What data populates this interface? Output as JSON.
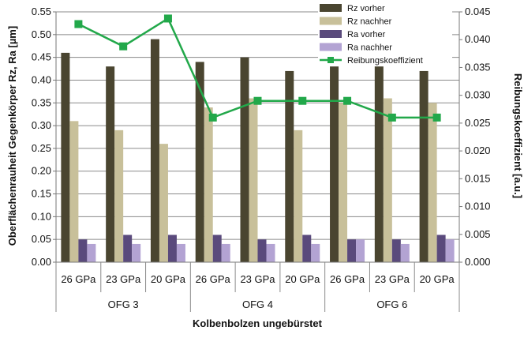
{
  "chart_data": {
    "type": "bar",
    "title": "",
    "xlabel": "Kolbenbolzen ungebürstet",
    "ylabel": "Oberflächenrauheit Gegenkörper Rz, Ra [µm]",
    "y2label": "Reibungskoeffizient [a.u.]",
    "ylim": [
      0,
      0.55
    ],
    "y2lim": [
      0,
      0.045
    ],
    "yticks": [
      "0.00",
      "0.05",
      "0.10",
      "0.15",
      "0.20",
      "0.25",
      "0.30",
      "0.35",
      "0.40",
      "0.45",
      "0.50",
      "0.55"
    ],
    "y2ticks": [
      "0.000",
      "0.005",
      "0.010",
      "0.015",
      "0.020",
      "0.025",
      "0.030",
      "0.035",
      "0.040",
      "0.045"
    ],
    "grid": "horizontal",
    "legend_position": "top-right",
    "categories": [
      "26 GPa",
      "23 GPa",
      "20 GPa",
      "26 GPa",
      "23 GPa",
      "20 GPa",
      "26 GPa",
      "23 GPa",
      "20 GPa"
    ],
    "groups": [
      {
        "label": "OFG 3",
        "count": 3
      },
      {
        "label": "OFG 4",
        "count": 3
      },
      {
        "label": "OFG 6",
        "count": 3
      }
    ],
    "series": [
      {
        "name": "Rz vorher",
        "type": "bar",
        "axis": "left",
        "color": "#4a4530",
        "values": [
          0.46,
          0.43,
          0.49,
          0.44,
          0.45,
          0.42,
          0.43,
          0.43,
          0.42
        ]
      },
      {
        "name": "Rz nachher",
        "type": "bar",
        "axis": "left",
        "color": "#c8c09a",
        "values": [
          0.31,
          0.29,
          0.26,
          0.34,
          0.36,
          0.29,
          0.35,
          0.36,
          0.35
        ]
      },
      {
        "name": "Ra vorher",
        "type": "bar",
        "axis": "left",
        "color": "#5a4a7c",
        "values": [
          0.05,
          0.06,
          0.06,
          0.06,
          0.05,
          0.06,
          0.05,
          0.05,
          0.06
        ]
      },
      {
        "name": "Ra nachher",
        "type": "bar",
        "axis": "left",
        "color": "#b3a3d3",
        "values": [
          0.04,
          0.04,
          0.04,
          0.04,
          0.04,
          0.04,
          0.05,
          0.04,
          0.05
        ]
      },
      {
        "name": "Reibungskoeffizient",
        "type": "line",
        "axis": "right",
        "color": "#22a84a",
        "values": [
          0.0428,
          0.0388,
          0.0438,
          0.026,
          0.029,
          0.029,
          0.029,
          0.026,
          0.026
        ]
      }
    ]
  }
}
